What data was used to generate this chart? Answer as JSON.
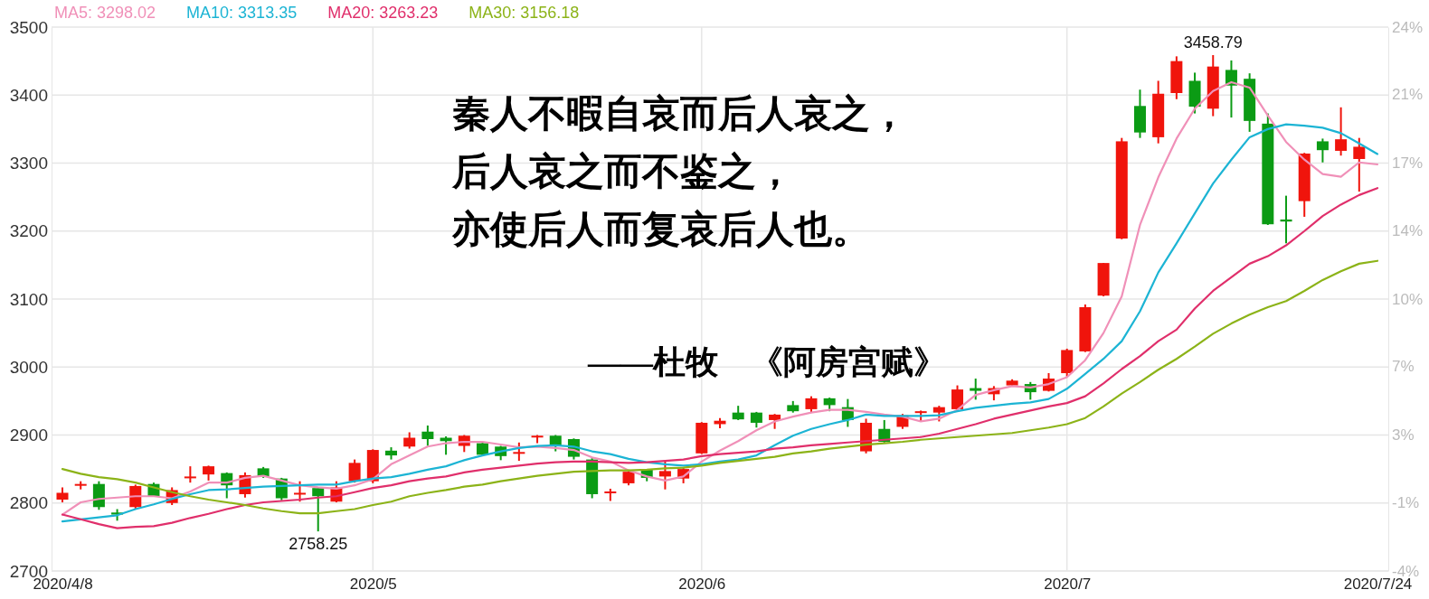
{
  "chart_data": {
    "type": "candlestick",
    "categories": [
      "2020/4/8",
      null,
      null,
      null,
      null,
      null,
      null,
      null,
      null,
      null,
      null,
      null,
      null,
      null,
      null,
      null,
      null,
      "2020/5",
      null,
      null,
      null,
      null,
      null,
      null,
      null,
      null,
      null,
      null,
      null,
      null,
      null,
      null,
      null,
      null,
      null,
      "2020/6",
      null,
      null,
      null,
      null,
      null,
      null,
      null,
      null,
      null,
      null,
      null,
      null,
      null,
      null,
      null,
      null,
      null,
      null,
      null,
      "2020/7",
      null,
      null,
      null,
      null,
      null,
      null,
      null,
      null,
      null,
      null,
      null,
      null,
      null,
      null,
      null,
      null,
      "2020/7/24"
    ],
    "ohlc": [
      [
        2805,
        2823,
        2801,
        2815
      ],
      [
        2826,
        2832,
        2820,
        2828
      ],
      [
        2828,
        2832,
        2790,
        2794
      ],
      [
        2786,
        2791,
        2774,
        2783
      ],
      [
        2794,
        2827,
        2791,
        2825
      ],
      [
        2828,
        2830,
        2809,
        2810
      ],
      [
        2800,
        2823,
        2797,
        2819
      ],
      [
        2837,
        2854,
        2830,
        2839
      ],
      [
        2842,
        2855,
        2833,
        2854
      ],
      [
        2844,
        2845,
        2807,
        2826
      ],
      [
        2813,
        2845,
        2808,
        2841
      ],
      [
        2851,
        2853,
        2837,
        2839
      ],
      [
        2836,
        2837,
        2804,
        2807
      ],
      [
        2813,
        2832,
        2802,
        2815
      ],
      [
        2822,
        2823,
        2758.25,
        2810
      ],
      [
        2802,
        2832,
        2801,
        2823
      ],
      [
        2832,
        2864,
        2830,
        2859
      ],
      [
        2832,
        2879,
        2829,
        2878
      ],
      [
        2877,
        2882,
        2864,
        2870
      ],
      [
        2883,
        2904,
        2880,
        2896
      ],
      [
        2905,
        2914,
        2884,
        2894
      ],
      [
        2896,
        2898,
        2871,
        2891
      ],
      [
        2884,
        2900,
        2875,
        2899
      ],
      [
        2888,
        2889,
        2870,
        2871
      ],
      [
        2883,
        2884,
        2863,
        2869
      ],
      [
        2873,
        2889,
        2862,
        2875
      ],
      [
        2897,
        2900,
        2888,
        2899
      ],
      [
        2899,
        2900,
        2876,
        2884
      ],
      [
        2894,
        2895,
        2864,
        2868
      ],
      [
        2864,
        2866,
        2807,
        2813
      ],
      [
        2815,
        2821,
        2803,
        2817
      ],
      [
        2829,
        2847,
        2826,
        2846
      ],
      [
        2849,
        2850,
        2832,
        2837
      ],
      [
        2839,
        2861,
        2820,
        2847
      ],
      [
        2836,
        2852,
        2829,
        2850
      ],
      [
        2873,
        2919,
        2872,
        2918
      ],
      [
        2916,
        2925,
        2910,
        2921
      ],
      [
        2933,
        2943,
        2922,
        2923
      ],
      [
        2933,
        2934,
        2911,
        2918
      ],
      [
        2922,
        2931,
        2909,
        2930
      ],
      [
        2944,
        2950,
        2933,
        2935
      ],
      [
        2938,
        2957,
        2933,
        2954
      ],
      [
        2954,
        2955,
        2935,
        2944
      ],
      [
        2941,
        2953,
        2912,
        2922
      ],
      [
        2876,
        2924,
        2873,
        2918
      ],
      [
        2909,
        2922,
        2889,
        2890
      ],
      [
        2912,
        2931,
        2909,
        2929
      ],
      [
        2934,
        2936,
        2920,
        2935
      ],
      [
        2933,
        2943,
        2920,
        2941
      ],
      [
        2938,
        2973,
        2937,
        2967
      ],
      [
        2969,
        2983,
        2952,
        2965
      ],
      [
        2960,
        2972,
        2951,
        2969
      ],
      [
        2973,
        2982,
        2972,
        2980
      ],
      [
        2975,
        2978,
        2952,
        2963
      ],
      [
        2965,
        2991,
        2964,
        2983
      ],
      [
        2991,
        3027,
        2986,
        3025
      ],
      [
        3023,
        3092,
        3022,
        3088
      ],
      [
        3105,
        3153,
        3104,
        3153
      ],
      [
        3189,
        3337,
        3188,
        3332
      ],
      [
        3384,
        3408,
        3337,
        3345
      ],
      [
        3338,
        3421,
        3329,
        3402
      ],
      [
        3403,
        3457,
        3394,
        3450
      ],
      [
        3421,
        3433,
        3373,
        3383
      ],
      [
        3380,
        3458.79,
        3369,
        3442
      ],
      [
        3437,
        3451,
        3367,
        3414
      ],
      [
        3424,
        3432,
        3346,
        3362
      ],
      [
        3358,
        3373,
        3209,
        3210
      ],
      [
        3217,
        3252,
        3182,
        3214
      ],
      [
        3244,
        3315,
        3221,
        3314
      ],
      [
        3332,
        3336,
        3301,
        3319
      ],
      [
        3318,
        3382,
        3311,
        3335
      ],
      [
        3306,
        3337,
        3258,
        3324
      ],
      null
    ],
    "colors": [
      "#f0140c",
      "#f0140c",
      "#0b9b14",
      "#0b9b14",
      "#f0140c",
      "#0b9b14",
      "#f0140c",
      "#f0140c",
      "#f0140c",
      "#0b9b14",
      "#f0140c",
      "#0b9b14",
      "#0b9b14",
      "#f0140c",
      "#0b9b14",
      "#f0140c",
      "#f0140c",
      "#f0140c",
      "#0b9b14",
      "#f0140c",
      "#0b9b14",
      "#0b9b14",
      "#f0140c",
      "#0b9b14",
      "#0b9b14",
      "#f0140c",
      "#f0140c",
      "#0b9b14",
      "#0b9b14",
      "#0b9b14",
      "#f0140c",
      "#f0140c",
      "#0b9b14",
      "#f0140c",
      "#f0140c",
      "#f0140c",
      "#f0140c",
      "#0b9b14",
      "#0b9b14",
      "#f0140c",
      "#0b9b14",
      "#f0140c",
      "#0b9b14",
      "#0b9b14",
      "#f0140c",
      "#0b9b14",
      "#f0140c",
      "#f0140c",
      "#f0140c",
      "#f0140c",
      "#0b9b14",
      "#f0140c",
      "#f0140c",
      "#0b9b14",
      "#f0140c",
      "#f0140c",
      "#f0140c",
      "#f0140c",
      "#f0140c",
      "#0b9b14",
      "#f0140c",
      "#f0140c",
      "#0b9b14",
      "#f0140c",
      "#0b9b14",
      "#0b9b14",
      "#0b9b14",
      "#0b9b14",
      "#f0140c",
      "#0b9b14",
      "#f0140c",
      "#f0140c",
      null
    ],
    "series": [
      {
        "type": "line",
        "name": "MA5: 3298.02",
        "color": "#f090b8",
        "values": [
          2783,
          2801,
          2806,
          2808,
          2810,
          2810,
          2807,
          2817,
          2830,
          2830,
          2837,
          2840,
          2833,
          2826,
          2823,
          2821,
          2826,
          2835,
          2857,
          2870,
          2883,
          2888,
          2890,
          2890,
          2886,
          2882,
          2883,
          2881,
          2878,
          2867,
          2861,
          2848,
          2839,
          2833,
          2839,
          2861,
          2877,
          2891,
          2907,
          2920,
          2927,
          2933,
          2937,
          2937,
          2934,
          2930,
          2927,
          2920,
          2924,
          2937,
          2959,
          2966,
          2972,
          2970,
          2975,
          2985,
          3010,
          3050,
          3104,
          3209,
          3279,
          3336,
          3380,
          3406,
          3419,
          3411,
          3370,
          3331,
          3305,
          3284,
          3280,
          3301,
          3298.02
        ]
      },
      {
        "type": "line",
        "name": "MA10: 3313.35",
        "color": "#1cb4d4",
        "values": [
          2773,
          2776,
          2779,
          2782,
          2791,
          2798,
          2806,
          2813,
          2819,
          2820,
          2822,
          2824,
          2825,
          2826,
          2827,
          2827,
          2832,
          2836,
          2838,
          2843,
          2849,
          2854,
          2863,
          2870,
          2876,
          2881,
          2884,
          2885,
          2883,
          2876,
          2872,
          2865,
          2860,
          2857,
          2855,
          2857,
          2861,
          2864,
          2870,
          2885,
          2899,
          2909,
          2916,
          2922,
          2930,
          2928,
          2928,
          2928,
          2929,
          2935,
          2940,
          2943,
          2946,
          2948,
          2953,
          2968,
          2990,
          3012,
          3038,
          3082,
          3139,
          3182,
          3226,
          3270,
          3305,
          3338,
          3350,
          3357,
          3355,
          3352,
          3344,
          3329,
          3313.35
        ]
      },
      {
        "type": "line",
        "name": "MA20: 3263.23",
        "color": "#e02f6b",
        "values": [
          2783,
          2776,
          2769,
          2763,
          2765,
          2766,
          2771,
          2778,
          2784,
          2791,
          2797,
          2801,
          2803,
          2805,
          2808,
          2810,
          2816,
          2822,
          2826,
          2832,
          2836,
          2839,
          2845,
          2849,
          2852,
          2855,
          2858,
          2860,
          2861,
          2861,
          2860,
          2859,
          2860,
          2862,
          2864,
          2869,
          2872,
          2874,
          2876,
          2880,
          2882,
          2885,
          2887,
          2889,
          2891,
          2893,
          2895,
          2897,
          2902,
          2909,
          2916,
          2924,
          2930,
          2936,
          2942,
          2947,
          2957,
          2976,
          2997,
          3016,
          3038,
          3055,
          3086,
          3112,
          3132,
          3152,
          3163,
          3179,
          3200,
          3222,
          3239,
          3253,
          3263.23
        ]
      },
      {
        "type": "line",
        "name": "MA30: 3156.18",
        "color": "#8cb318",
        "values": [
          2850,
          2843,
          2838,
          2835,
          2830,
          2823,
          2816,
          2810,
          2805,
          2801,
          2797,
          2792,
          2788,
          2785,
          2785,
          2788,
          2791,
          2797,
          2802,
          2810,
          2815,
          2819,
          2824,
          2827,
          2832,
          2836,
          2840,
          2843,
          2846,
          2847,
          2848,
          2848,
          2849,
          2851,
          2852,
          2855,
          2859,
          2862,
          2865,
          2868,
          2873,
          2876,
          2880,
          2883,
          2886,
          2888,
          2890,
          2893,
          2895,
          2897,
          2899,
          2901,
          2903,
          2907,
          2911,
          2916,
          2925,
          2942,
          2961,
          2978,
          2996,
          3012,
          3030,
          3049,
          3064,
          3077,
          3088,
          3097,
          3112,
          3128,
          3141,
          3152,
          3156.18
        ]
      }
    ],
    "ylim": [
      2700,
      3500
    ],
    "yticks": [
      2700,
      2800,
      2900,
      3000,
      3100,
      3200,
      3300,
      3400,
      3500
    ],
    "y2lim": [
      -4.1,
      24.3
    ],
    "y2ticks": [
      {
        "value": -4.1,
        "label": "-4%"
      },
      {
        "value": -0.5,
        "label": "-1%"
      },
      {
        "value": 3.0,
        "label": "3%"
      },
      {
        "value": 6.6,
        "label": "7%"
      },
      {
        "value": 10.1,
        "label": "10%"
      },
      {
        "value": 13.7,
        "label": "14%"
      },
      {
        "value": 17.2,
        "label": "17%"
      },
      {
        "value": 20.8,
        "label": "21%"
      },
      {
        "value": 24.3,
        "label": "24%"
      }
    ],
    "grid": true,
    "legend": "top left",
    "annotations": [
      "秦人不暇自哀而后人哀之，",
      "后人哀之而不鉴之，",
      "亦使后人而复哀后人也。",
      "——杜牧　《阿房宫赋》",
      {
        "text": "3458.79",
        "y": 3458.79
      },
      {
        "text": "2758.25",
        "y": 2758.25
      }
    ]
  }
}
